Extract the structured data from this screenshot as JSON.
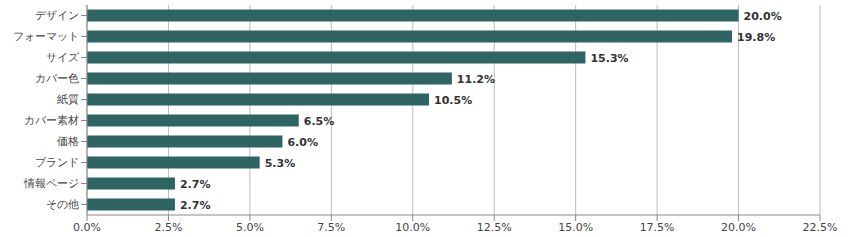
{
  "chart_data": {
    "type": "bar",
    "orientation": "horizontal",
    "categories": [
      "デザイン",
      "フォーマット",
      "サイズ",
      "カバー色",
      "紙質",
      "カバー素材",
      "価格",
      "ブランド",
      "情報ページ",
      "その他"
    ],
    "values": [
      20.0,
      19.8,
      15.3,
      11.2,
      10.5,
      6.5,
      6.0,
      5.3,
      2.7,
      2.7
    ],
    "value_labels": [
      "20.0%",
      "19.8%",
      "15.3%",
      "11.2%",
      "10.5%",
      "6.5%",
      "6.0%",
      "5.3%",
      "2.7%",
      "2.7%"
    ],
    "data_labels": true,
    "color": "#2e6461",
    "xlim": [
      0,
      22.5
    ],
    "xticks": [
      {
        "value": 0,
        "label": "0.0%"
      },
      {
        "value": 2.5,
        "label": "2.5%"
      },
      {
        "value": 5,
        "label": "5.0%"
      },
      {
        "value": 7.5,
        "label": "7.5%"
      },
      {
        "value": 10,
        "label": "10.0%"
      },
      {
        "value": 12.5,
        "label": "12.5%"
      },
      {
        "value": 15,
        "label": "15.0%"
      },
      {
        "value": 17.5,
        "label": "17.5%"
      },
      {
        "value": 20,
        "label": "20.0%"
      },
      {
        "value": 22.5,
        "label": "22.5%"
      }
    ],
    "grid": true
  }
}
